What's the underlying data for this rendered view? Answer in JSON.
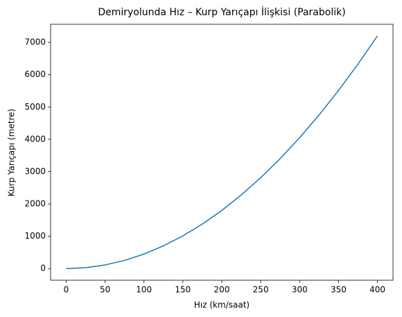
{
  "chart_data": {
    "type": "line",
    "title": "Demiryolunda Hız – Kurp Yarıçapı İlişkisi (Parabolik)",
    "x_label": "Hız (km/saat)",
    "y_label": "Kurp Yarıçapı (metre)",
    "x": [
      0,
      25,
      50,
      75,
      100,
      125,
      150,
      175,
      200,
      225,
      250,
      275,
      300,
      325,
      350,
      375,
      400
    ],
    "series": [
      {
        "name": "Kurp Yarıçapı",
        "color": "#1f77b4",
        "values": [
          0,
          28,
          113,
          253,
          450,
          703,
          1013,
          1378,
          1800,
          2278,
          2813,
          3403,
          4050,
          4753,
          5513,
          6328,
          7200
        ]
      }
    ],
    "xlim": [
      -20,
      420
    ],
    "ylim": [
      -360,
      7560
    ],
    "xticks": [
      0,
      50,
      100,
      150,
      200,
      250,
      300,
      350,
      400
    ],
    "yticks": [
      0,
      1000,
      2000,
      3000,
      4000,
      5000,
      6000,
      7000
    ],
    "grid": false
  }
}
